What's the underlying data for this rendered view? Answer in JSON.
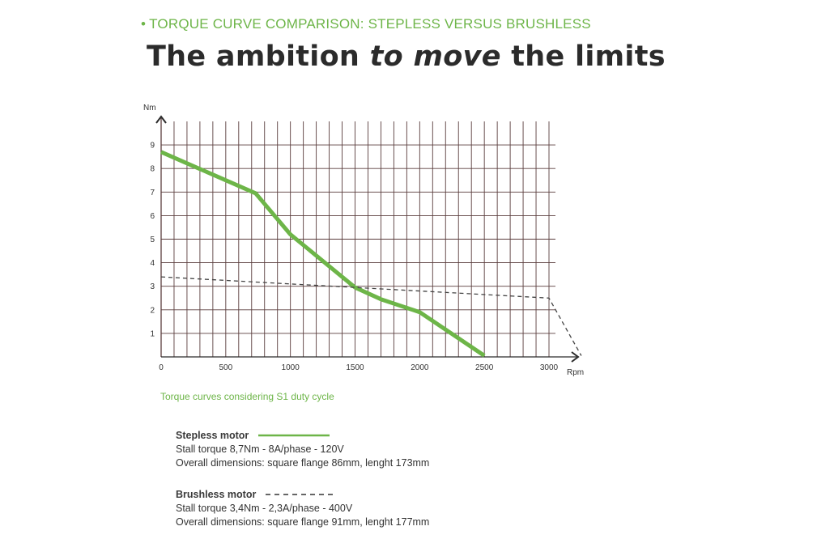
{
  "header": {
    "subtitle": "TORQUE CURVE COMPARISON: STEPLESS VERSUS BRUSHLESS",
    "title_part1": "The ambition ",
    "title_emphasis": "to move",
    "title_part2": " the limits"
  },
  "colors": {
    "accent_green": "#6db548",
    "grid": "#5a3d3d",
    "dashed": "#444444"
  },
  "chart_note": "Torque curves considering S1 duty cycle",
  "chart_data": {
    "type": "line",
    "xlabel": "Rpm",
    "ylabel": "Nm",
    "xlim": [
      0,
      3000
    ],
    "ylim": [
      0,
      10
    ],
    "xticks": [
      0,
      500,
      1000,
      1500,
      2000,
      2500,
      3000
    ],
    "yticks": [
      1,
      2,
      3,
      4,
      5,
      6,
      7,
      8,
      9
    ],
    "grid": true,
    "series": [
      {
        "name": "Stepless motor",
        "style": "solid",
        "color": "#6db548",
        "points": [
          [
            0,
            8.7
          ],
          [
            250,
            8.1
          ],
          [
            730,
            6.95
          ],
          [
            1000,
            5.2
          ],
          [
            1500,
            2.95
          ],
          [
            1700,
            2.45
          ],
          [
            2000,
            1.9
          ],
          [
            2500,
            0.05
          ]
        ]
      },
      {
        "name": "Brushless motor",
        "style": "dashed",
        "color": "#444444",
        "points": [
          [
            0,
            3.4
          ],
          [
            3000,
            2.5
          ],
          [
            3250,
            0.05
          ]
        ]
      }
    ]
  },
  "legend": {
    "stepless": {
      "name": "Stepless motor",
      "line1": "Stall torque 8,7Nm - 8A/phase - 120V",
      "line2": "Overall dimensions:  square flange 86mm, lenght 173mm"
    },
    "brushless": {
      "name": "Brushless motor",
      "line1": "Stall torque 3,4Nm - 2,3A/phase - 400V",
      "line2": "Overall dimensions:  square flange 91mm, lenght 177mm"
    }
  }
}
